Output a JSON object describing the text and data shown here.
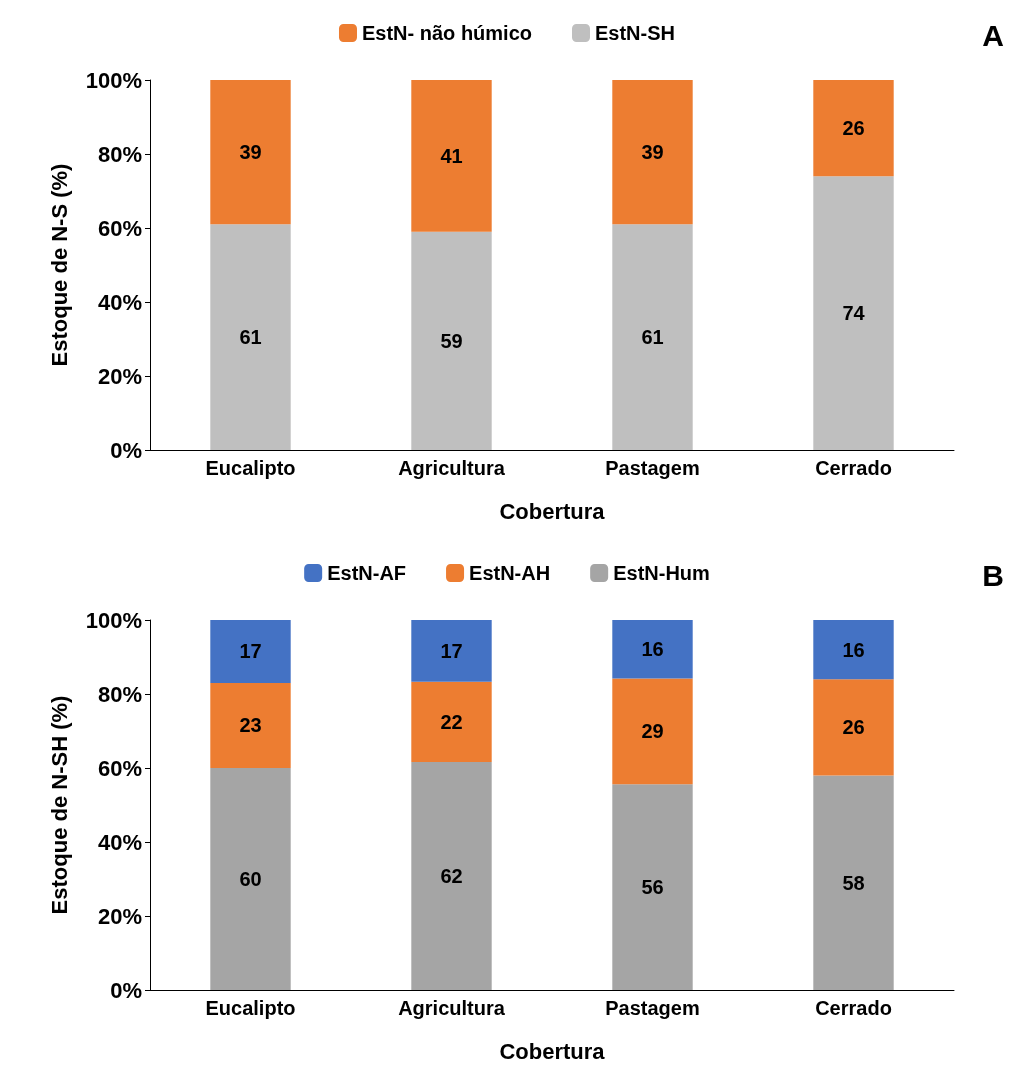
{
  "chart_data": [
    {
      "type": "bar",
      "stacked": true,
      "categories": [
        "Eucalipto",
        "Agricultura",
        "Pastagem",
        "Cerrado"
      ],
      "xlabel": "Cobertura",
      "ylabel": "Estoque de N-S (%)",
      "ylim": [
        0,
        100
      ],
      "yticks": [
        {
          "value": 0,
          "label": "0%"
        },
        {
          "value": 20,
          "label": "20%"
        },
        {
          "value": 40,
          "label": "40%"
        },
        {
          "value": 60,
          "label": "60%"
        },
        {
          "value": 80,
          "label": "80%"
        },
        {
          "value": 100,
          "label": "100%"
        }
      ],
      "series": [
        {
          "name": "EstN-SH",
          "color": "#bfbfbf",
          "values": [
            61,
            59,
            61,
            74
          ]
        },
        {
          "name": "EstN- não húmico",
          "color": "#ed7d31",
          "values": [
            39,
            41,
            39,
            26
          ]
        }
      ],
      "data_labels": true,
      "legend": "top",
      "grid": false,
      "annotations": [
        "A"
      ]
    },
    {
      "type": "bar",
      "stacked": true,
      "categories": [
        "Eucalipto",
        "Agricultura",
        "Pastagem",
        "Cerrado"
      ],
      "xlabel": "Cobertura",
      "ylabel": "Estoque de N-SH (%)",
      "ylim": [
        0,
        100
      ],
      "yticks": [
        {
          "value": 0,
          "label": "0%"
        },
        {
          "value": 20,
          "label": "20%"
        },
        {
          "value": 40,
          "label": "40%"
        },
        {
          "value": 60,
          "label": "60%"
        },
        {
          "value": 80,
          "label": "80%"
        },
        {
          "value": 100,
          "label": "100%"
        }
      ],
      "series": [
        {
          "name": "EstN-Hum",
          "color": "#a5a5a5",
          "values": [
            60,
            61.6,
            55.6,
            58
          ],
          "value_labels": [
            "60",
            "62",
            "56",
            "58"
          ]
        },
        {
          "name": "EstN-AH",
          "color": "#ed7d31",
          "values": [
            23,
            21.7,
            28.6,
            26
          ],
          "value_labels": [
            "23",
            "22",
            "29",
            "26"
          ]
        },
        {
          "name": "EstN-AF",
          "color": "#4472c4",
          "values": [
            17,
            16.7,
            15.8,
            16
          ],
          "value_labels": [
            "17",
            "17",
            "16",
            "16"
          ]
        }
      ],
      "legend": "top",
      "grid": false,
      "annotations": [
        "B"
      ]
    }
  ]
}
